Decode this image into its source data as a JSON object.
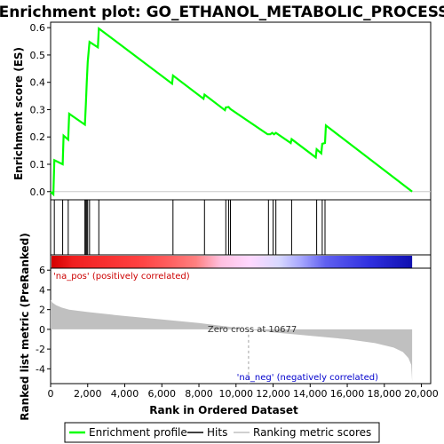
{
  "chart_data": {
    "type": "line",
    "title": "Enrichment plot: GO_ETHANOL_METABOLIC_PROCESS",
    "top_panel": {
      "ylabel": "Enrichment score (ES)",
      "ylim": [
        -0.03,
        0.62
      ],
      "yticks": [
        0.0,
        0.1,
        0.2,
        0.3,
        0.4,
        0.5,
        0.6
      ],
      "ytick_labels": [
        "0.0",
        "0.1",
        "0.2",
        "0.3",
        "0.4",
        "0.5",
        "0.6"
      ],
      "series": [
        {
          "name": "Enrichment profile",
          "color": "#00ff00",
          "points": [
            [
              0,
              0.0
            ],
            [
              150,
              -0.01
            ],
            [
              200,
              0.115
            ],
            [
              650,
              0.1
            ],
            [
              700,
              0.205
            ],
            [
              950,
              0.19
            ],
            [
              1000,
              0.285
            ],
            [
              1850,
              0.245
            ],
            [
              1900,
              0.32
            ],
            [
              1950,
              0.4
            ],
            [
              2000,
              0.475
            ],
            [
              2100,
              0.548
            ],
            [
              2550,
              0.528
            ],
            [
              2600,
              0.597
            ],
            [
              6550,
              0.395
            ],
            [
              6600,
              0.425
            ],
            [
              8250,
              0.34
            ],
            [
              8300,
              0.355
            ],
            [
              9400,
              0.298
            ],
            [
              9450,
              0.308
            ],
            [
              9600,
              0.31
            ],
            [
              9700,
              0.302
            ],
            [
              11700,
              0.21
            ],
            [
              11850,
              0.21
            ],
            [
              11950,
              0.215
            ],
            [
              12050,
              0.21
            ],
            [
              12150,
              0.215
            ],
            [
              12950,
              0.178
            ],
            [
              13000,
              0.192
            ],
            [
              14300,
              0.125
            ],
            [
              14350,
              0.155
            ],
            [
              14600,
              0.14
            ],
            [
              14650,
              0.175
            ],
            [
              14800,
              0.178
            ],
            [
              14850,
              0.242
            ],
            [
              19500,
              0.0
            ]
          ]
        }
      ]
    },
    "hits": [
      200,
      650,
      950,
      1850,
      1900,
      1950,
      2000,
      2100,
      2600,
      6600,
      8300,
      9450,
      9600,
      9700,
      11750,
      12000,
      12150,
      13000,
      14350,
      14650,
      14800
    ],
    "heatmap_stops": [
      {
        "at": 0.0,
        "color": "#d40000"
      },
      {
        "at": 0.06,
        "color": "#f02020"
      },
      {
        "at": 0.24,
        "color": "#ff4040"
      },
      {
        "at": 0.33,
        "color": "#ff6060"
      },
      {
        "at": 0.4,
        "color": "#ff8080"
      },
      {
        "at": 0.47,
        "color": "#ffc0e0"
      },
      {
        "at": 0.55,
        "color": "#ffd8ff"
      },
      {
        "at": 0.63,
        "color": "#d8d8ff"
      },
      {
        "at": 0.69,
        "color": "#a8a8ff"
      },
      {
        "at": 0.76,
        "color": "#6060f0"
      },
      {
        "at": 0.88,
        "color": "#3030e0"
      },
      {
        "at": 1.0,
        "color": "#1010b0"
      }
    ],
    "bottom_panel": {
      "ylabel": "Ranked list metric (PreRanked)",
      "ylim": [
        -5.5,
        6.2
      ],
      "yticks": [
        -4,
        -2,
        0,
        2,
        4,
        6
      ],
      "ytick_labels": [
        "-4",
        "-2",
        "0",
        "2",
        "4",
        "6"
      ],
      "metric_curve": [
        [
          0,
          3.0
        ],
        [
          100,
          2.7
        ],
        [
          300,
          2.45
        ],
        [
          600,
          2.2
        ],
        [
          1000,
          2.0
        ],
        [
          2000,
          1.75
        ],
        [
          4000,
          1.35
        ],
        [
          6000,
          1.0
        ],
        [
          8000,
          0.65
        ],
        [
          9500,
          0.3
        ],
        [
          10677,
          0.0
        ],
        [
          12000,
          -0.3
        ],
        [
          14000,
          -0.65
        ],
        [
          16000,
          -1.0
        ],
        [
          17500,
          -1.4
        ],
        [
          18500,
          -1.85
        ],
        [
          19000,
          -2.3
        ],
        [
          19300,
          -2.9
        ],
        [
          19450,
          -3.6
        ],
        [
          19500,
          -5.3
        ]
      ],
      "metric_color": "#c0c0c0",
      "zero_cross_label": "Zero cross at 10677",
      "zero_cross_x": 10677,
      "pos_label": "'na_pos' (positively correlated)",
      "neg_label": "'na_neg' (negatively correlated)",
      "pos_color": "#cc0000",
      "neg_color": "#0000cc"
    },
    "xlabel": "Rank in Ordered Dataset",
    "xlim": [
      0,
      20500
    ],
    "xticks": [
      0,
      2000,
      4000,
      6000,
      8000,
      10000,
      12000,
      14000,
      16000,
      18000,
      20000
    ],
    "xtick_labels": [
      "0",
      "2,000",
      "4,000",
      "6,000",
      "8,000",
      "10,000",
      "12,000",
      "14,000",
      "16,000",
      "18,000",
      "20,000"
    ],
    "n_genes": 19500,
    "legend": {
      "placement": "bottom",
      "items": [
        {
          "label": "Enrichment profile",
          "color": "#00ff00",
          "kind": "line"
        },
        {
          "label": "Hits",
          "color": "#000000",
          "kind": "line"
        },
        {
          "label": "Ranking metric scores",
          "color": "#c0c0c0",
          "kind": "line"
        }
      ]
    }
  }
}
